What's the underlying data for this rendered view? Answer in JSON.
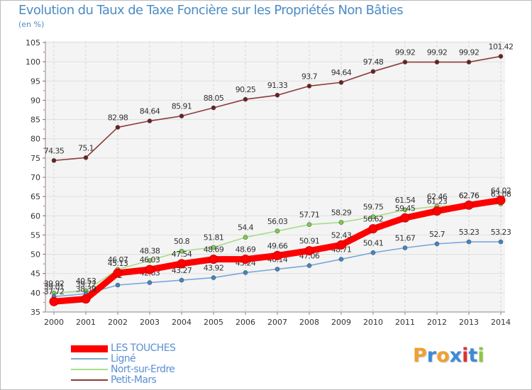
{
  "chart_data": {
    "type": "line",
    "title": "Evolution du Taux de Taxe Foncière sur les Propriétés Non Bâties",
    "ylabel": "(en %)",
    "xlabel": "",
    "ylim": [
      35,
      105
    ],
    "yticks": [
      35,
      40,
      45,
      50,
      55,
      60,
      65,
      70,
      75,
      80,
      85,
      90,
      95,
      100,
      105
    ],
    "categories": [
      "2000",
      "2001",
      "2002",
      "2003",
      "2004",
      "2005",
      "2006",
      "2007",
      "2008",
      "2009",
      "2010",
      "2011",
      "2012",
      "2013",
      "2014"
    ],
    "grid": true,
    "legend_position": "bottom-left",
    "series": [
      {
        "name": "Petit-Mars",
        "color": "#8b3b3b",
        "marker": "#6e1e1e",
        "values": [
          74.35,
          75.1,
          82.98,
          84.64,
          85.91,
          88.05,
          90.25,
          91.33,
          93.7,
          94.64,
          97.48,
          99.92,
          99.92,
          99.92,
          101.42
        ],
        "labels": [
          "74.35",
          "75.1",
          "82.98",
          "84.64",
          "85.91",
          "88.05",
          "90.25",
          "91.33",
          "93.7",
          "94.64",
          "97.48",
          "99.92",
          "99.92",
          "99.92",
          "101.42"
        ]
      },
      {
        "name": "Nort-sur-Erdre",
        "color": "#a8dc8c",
        "marker": "#7ed04a",
        "values": [
          39.92,
          40.53,
          46.07,
          48.38,
          50.8,
          51.81,
          54.4,
          56.03,
          57.71,
          58.29,
          59.75,
          61.54,
          62.46,
          62.76,
          63.08
        ],
        "labels": [
          "39.92",
          "40.53",
          "46.07",
          "48.38",
          "50.8",
          "51.81",
          "54.4",
          "56.03",
          "57.71",
          "58.29",
          "59.75",
          "61.54",
          "62.46",
          "62.76",
          "63.08"
        ]
      },
      {
        "name": "Ligné",
        "color": "#7ba7d8",
        "marker": "#3f86c8",
        "values": [
          39.01,
          39.72,
          42.0,
          42.63,
          43.27,
          43.92,
          45.24,
          46.14,
          47.06,
          48.71,
          50.41,
          51.67,
          52.7,
          53.23,
          53.23
        ],
        "labels": [
          "39.01",
          "39.72",
          "42",
          "42.63",
          "43.27",
          "43.92",
          "45.24",
          "46.14",
          "47.06",
          "48.71",
          "50.41",
          "51.67",
          "52.7",
          "53.23",
          "53.23"
        ]
      },
      {
        "name": "LES TOUCHES",
        "color": "#ff0000",
        "marker": "#ff0000",
        "values": [
          37.72,
          38.39,
          45.13,
          46.03,
          47.54,
          48.69,
          48.69,
          49.66,
          50.91,
          52.43,
          56.62,
          59.45,
          61.23,
          62.76,
          64.02
        ],
        "labels": [
          "37.72",
          "38.39",
          "45.13",
          "46.03",
          "47.54",
          "48.69",
          "48.69",
          "49.66",
          "50.91",
          "52.43",
          "56.62",
          "59.45",
          "61.23",
          "62.76",
          "64.02"
        ]
      }
    ]
  },
  "legend": {
    "items": [
      {
        "label": "LES TOUCHES",
        "color": "#ff0000"
      },
      {
        "label": "Ligné",
        "color": "#7ba7d8"
      },
      {
        "label": "Nort-sur-Erdre",
        "color": "#a8dc8c"
      },
      {
        "label": "Petit-Mars",
        "color": "#8b3b3b"
      }
    ]
  },
  "brand": {
    "letters": [
      "P",
      "r",
      "o",
      "x",
      "i",
      "t",
      "i"
    ],
    "colors": [
      "#f0a030",
      "#3c8ad8",
      "#f0a030",
      "#3c8ad8",
      "#e03030",
      "#3c8ad8",
      "#8cc83c"
    ]
  }
}
